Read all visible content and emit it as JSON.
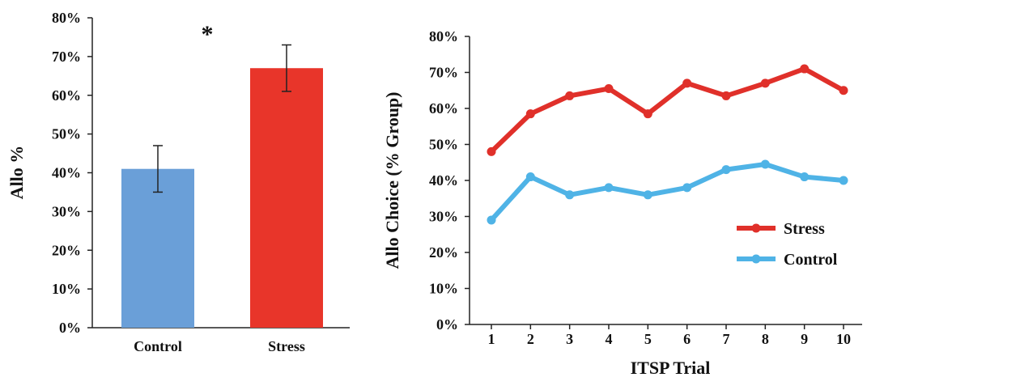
{
  "chart_data": [
    {
      "type": "bar",
      "categories": [
        "Control",
        "Stress"
      ],
      "values": [
        41,
        67
      ],
      "errors": [
        6,
        6
      ],
      "ylabel": "Allo %",
      "xlabel": "",
      "ylim": [
        0,
        80
      ],
      "yticks": [
        "0%",
        "10%",
        "20%",
        "30%",
        "40%",
        "50%",
        "60%",
        "70%",
        "80%"
      ],
      "annotation": "*",
      "colors": [
        "#6a9fd8",
        "#e8352a"
      ],
      "grid": false
    },
    {
      "type": "line",
      "x": [
        1,
        2,
        3,
        4,
        5,
        6,
        7,
        8,
        9,
        10
      ],
      "series": [
        {
          "name": "Stress",
          "color": "#e0302a",
          "values": [
            48,
            58.5,
            63.5,
            65.5,
            58.5,
            67,
            63.5,
            67,
            71,
            65
          ]
        },
        {
          "name": "Control",
          "color": "#4fb3e6",
          "values": [
            29,
            41,
            36,
            38,
            36,
            38,
            43,
            44.5,
            41,
            40
          ]
        }
      ],
      "xlabel": "ITSP Trial",
      "ylabel": "Allo Choice (% Group)",
      "ylim": [
        0,
        80
      ],
      "yticks": [
        "0%",
        "10%",
        "20%",
        "30%",
        "40%",
        "50%",
        "60%",
        "70%",
        "80%"
      ],
      "legend": "right",
      "grid": false
    }
  ]
}
